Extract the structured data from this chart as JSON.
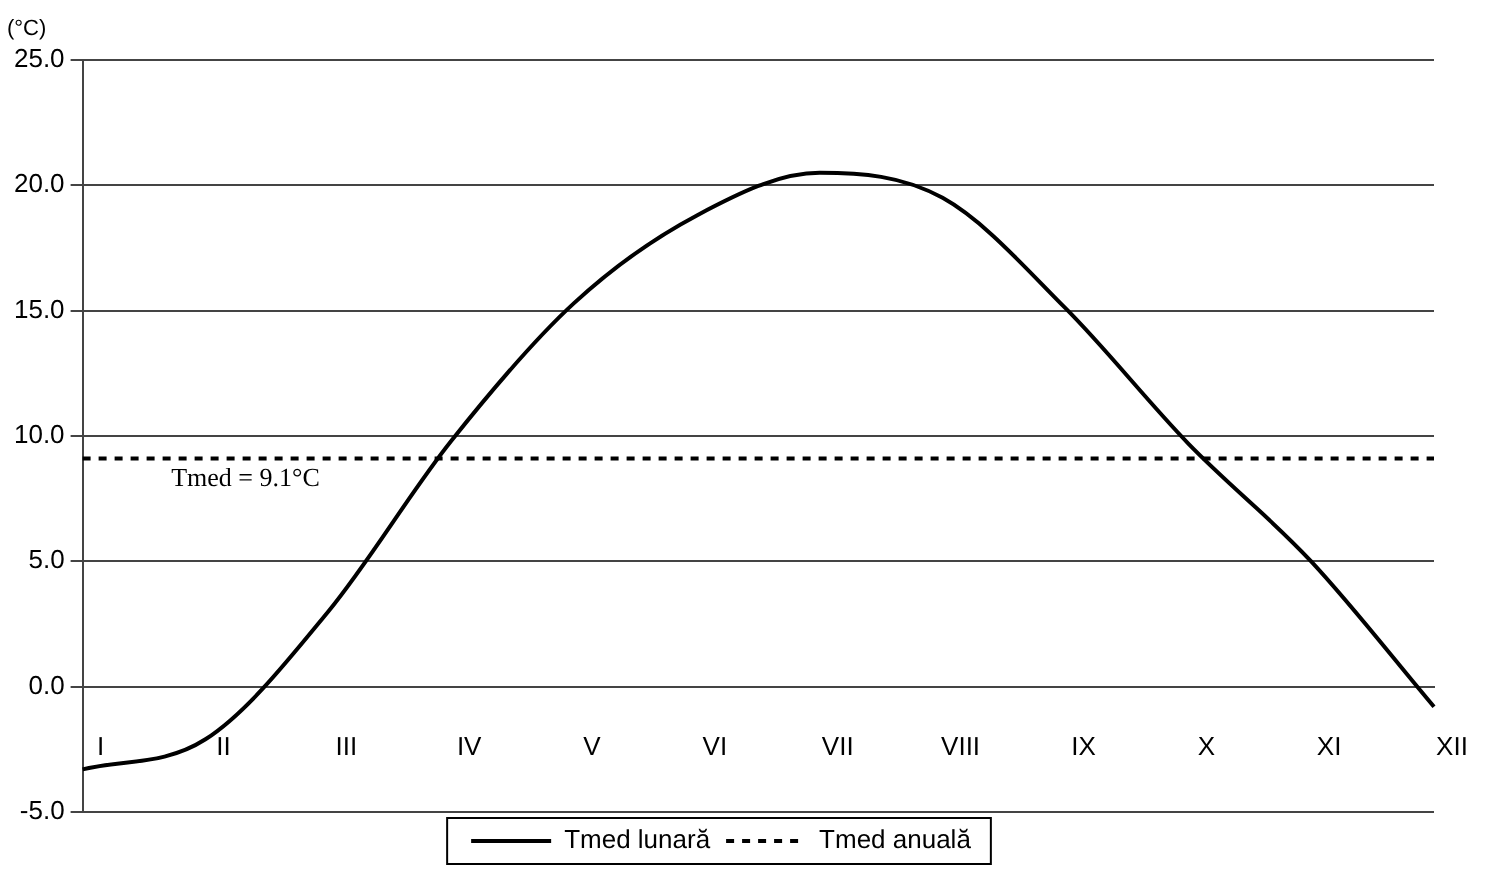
{
  "chart_data": {
    "type": "line",
    "ylabel": "(°C)",
    "categories": [
      "I",
      "II",
      "III",
      "IV",
      "V",
      "VI",
      "VII",
      "VIII",
      "IX",
      "X",
      "XI",
      "XII"
    ],
    "series": [
      {
        "name": "Tmed lunară",
        "color": "#000000",
        "line_style": "solid",
        "values": [
          -3.3,
          -2.1,
          3.0,
          9.8,
          15.3,
          18.8,
          20.5,
          19.5,
          15.1,
          9.7,
          5.0,
          -0.8
        ]
      },
      {
        "name": "Tmed anuală",
        "color": "#000000",
        "line_style": "dotted",
        "values": [
          9.1,
          9.1,
          9.1,
          9.1,
          9.1,
          9.1,
          9.1,
          9.1,
          9.1,
          9.1,
          9.1,
          9.1
        ]
      }
    ],
    "ylim": [
      -5,
      25
    ],
    "yticks": [
      {
        "value": -5,
        "label": "-5.0"
      },
      {
        "value": 0,
        "label": "0.0"
      },
      {
        "value": 5,
        "label": "5.0"
      },
      {
        "value": 10,
        "label": "10.0"
      },
      {
        "value": 15,
        "label": "15.0"
      },
      {
        "value": 20,
        "label": "20.0"
      },
      {
        "value": 25,
        "label": "25.0"
      }
    ],
    "grid": "y",
    "legend": "bottom",
    "marker": "none",
    "annotations": [
      {
        "text": "Tmed = 9.1°C",
        "x": "II",
        "y": 9.1
      }
    ]
  }
}
